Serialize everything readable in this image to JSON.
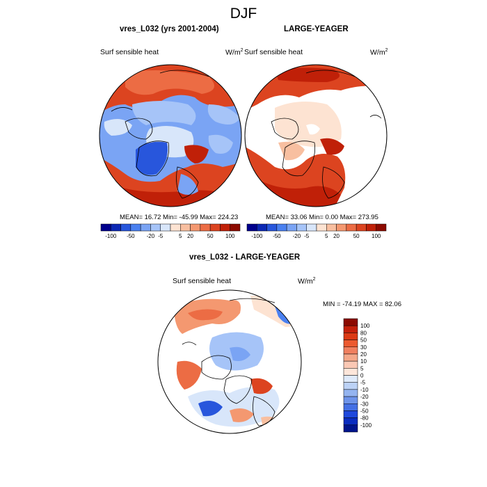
{
  "page_title": "DJF",
  "panels": [
    {
      "title": "vres_L032 (yrs 2001-2004)",
      "variable": "Surf sensible heat",
      "units": "W/m",
      "units_exp": "2",
      "stats": "MEAN=  16.72  Min= -45.99  Max= 224.23"
    },
    {
      "title": "LARGE-YEAGER",
      "variable": "Surf sensible heat",
      "units": "W/m",
      "units_exp": "2",
      "stats": "MEAN=  33.06  Min=   0.00  Max= 273.95"
    },
    {
      "title": "vres_L032 - LARGE-YEAGER",
      "variable": "Surf sensible heat",
      "units": "W/m",
      "units_exp": "2",
      "stats": "MIN = -74.19 MAX =  82.06"
    }
  ],
  "colorbar_top": {
    "colors": [
      "#00008c",
      "#0c28b4",
      "#2856dc",
      "#4a80f0",
      "#7aa4f4",
      "#a6c4f8",
      "#d8e6fa",
      "#fde3d2",
      "#f8bfa0",
      "#f49870",
      "#ec6c44",
      "#dc4420",
      "#c02008",
      "#8c0a00"
    ],
    "tick_labels": [
      "-100",
      "-50",
      "-20",
      "-5",
      "5",
      "20",
      "50",
      "100"
    ]
  },
  "colorbar_diff": {
    "colors": [
      "#8c0a00",
      "#c4200a",
      "#dc3a14",
      "#ec5a30",
      "#f08060",
      "#f4a88a",
      "#fac8b4",
      "#fde6da",
      "#dfeafb",
      "#bcd2f6",
      "#94b4f0",
      "#6e94ea",
      "#4470e4",
      "#1e48dc",
      "#0a2cc0",
      "#00148c"
    ],
    "tick_labels": [
      "100",
      "80",
      "50",
      "30",
      "20",
      "10",
      "5",
      "0",
      "-5",
      "-10",
      "-20",
      "-30",
      "-50",
      "-80",
      "-100"
    ]
  },
  "chart_data": [
    {
      "type": "heatmap",
      "title": "vres_L032 (yrs 2001-2004)",
      "variable": "Surf sensible heat",
      "units": "W/m2",
      "projection": "north polar stereographic",
      "mean": 16.72,
      "min": -45.99,
      "max": 224.23,
      "contour_levels": [
        -100,
        -50,
        -20,
        -5,
        5,
        20,
        50,
        100
      ]
    },
    {
      "type": "heatmap",
      "title": "LARGE-YEAGER",
      "variable": "Surf sensible heat",
      "units": "W/m2",
      "projection": "north polar stereographic",
      "mean": 33.06,
      "min": 0.0,
      "max": 273.95,
      "contour_levels": [
        -100,
        -50,
        -20,
        -5,
        5,
        20,
        50,
        100
      ]
    },
    {
      "type": "heatmap",
      "title": "vres_L032 - LARGE-YEAGER",
      "variable": "Surf sensible heat",
      "units": "W/m2",
      "projection": "north polar stereographic",
      "min": -74.19,
      "max": 82.06,
      "contour_levels": [
        100,
        80,
        50,
        30,
        20,
        10,
        5,
        0,
        -5,
        -10,
        -20,
        -30,
        -50,
        -80,
        -100
      ]
    }
  ]
}
